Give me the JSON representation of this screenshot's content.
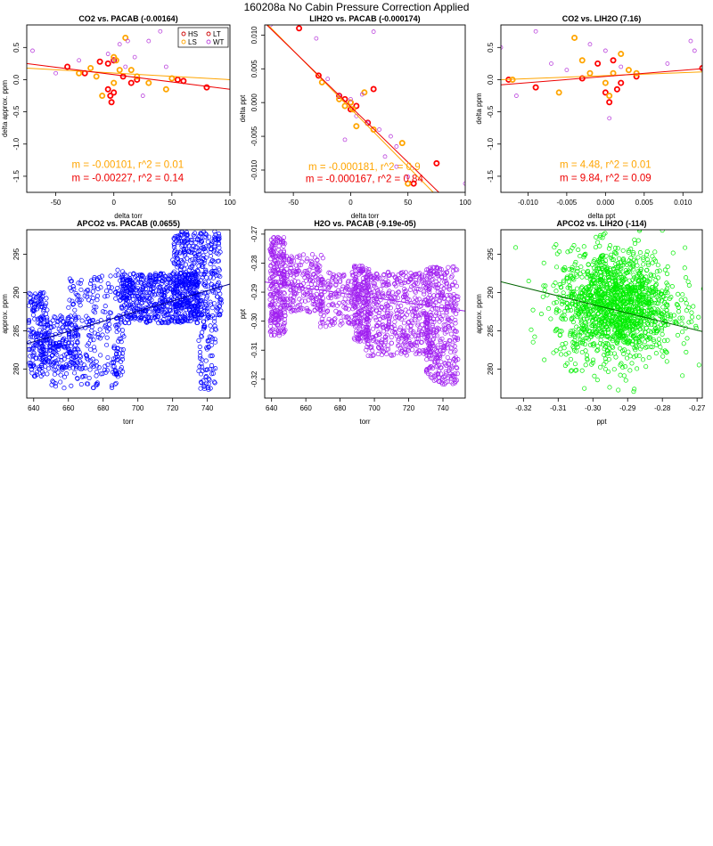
{
  "title": "160208a   No Cabin Pressure Correction Applied",
  "chart_data": [
    {
      "id": "p1",
      "type": "scatter",
      "title": "CO2 vs. PACAB (-0.00164)",
      "xlabel": "delta torr",
      "ylabel": "delta approx. ppm",
      "xlim": [
        -75,
        100
      ],
      "ylim": [
        -1.75,
        0.85
      ],
      "xticks": [
        -50,
        0,
        50,
        100
      ],
      "yticks": [
        -1.5,
        -1.0,
        -0.5,
        0.0,
        0.5
      ],
      "ytick_labels": [
        "-1.5",
        "-1.0",
        "-0.5",
        "0.0",
        "0.5"
      ],
      "legend": {
        "placement": "top-right",
        "entries": [
          {
            "label": "HS",
            "color": "#cc0000"
          },
          {
            "label": "LT",
            "color": "#cc0000"
          },
          {
            "label": "LS",
            "color": "#ffa500"
          },
          {
            "label": "WT",
            "color": "#bb44dd"
          }
        ]
      },
      "series": [
        {
          "name": "HS",
          "color": "#ff0000",
          "thick": true,
          "x": [
            -40,
            -25,
            -12,
            -5,
            -5,
            -3,
            -2,
            0,
            0,
            8,
            15,
            20,
            60,
            80,
            55,
            0
          ],
          "y": [
            0.2,
            0.1,
            0.28,
            0.25,
            -0.15,
            -0.25,
            -0.35,
            0.3,
            -0.2,
            0.05,
            -0.05,
            0.0,
            -0.02,
            -0.12,
            0.0,
            0.3
          ]
        },
        {
          "name": "LS",
          "color": "#ffa500",
          "thick": true,
          "x": [
            -30,
            -20,
            -15,
            -10,
            0,
            0,
            2,
            5,
            10,
            15,
            20,
            30,
            45,
            50
          ],
          "y": [
            0.1,
            0.18,
            0.05,
            -0.25,
            0.35,
            -0.05,
            0.3,
            0.15,
            0.65,
            0.15,
            0.05,
            -0.05,
            -0.15,
            0.02
          ]
        },
        {
          "name": "WT",
          "color": "#bb44dd",
          "thick": false,
          "x": [
            -70,
            -30,
            -5,
            0,
            5,
            10,
            12,
            18,
            25,
            30,
            40,
            45,
            -50
          ],
          "y": [
            0.45,
            0.3,
            0.4,
            0.3,
            0.55,
            0.2,
            0.6,
            0.35,
            -0.25,
            0.6,
            0.75,
            0.2,
            0.1
          ]
        }
      ],
      "fits": [
        {
          "color": "#ffa500",
          "x": [
            -75,
            100
          ],
          "y": [
            0.18,
            0.0
          ]
        },
        {
          "color": "#ee0000",
          "x": [
            -75,
            100
          ],
          "y": [
            0.25,
            -0.15
          ]
        }
      ],
      "annotations": [
        {
          "text": "m = -0.00101, r^2 = 0.01",
          "color": "#ffa500",
          "x": 12,
          "y": -1.37
        },
        {
          "text": "m = -0.00227, r^2 = 0.14",
          "color": "#ee0000",
          "x": 12,
          "y": -1.58
        }
      ]
    },
    {
      "id": "p2",
      "type": "scatter",
      "title": "LIH2O vs. PACAB (-0.000174)",
      "xlabel": "delta torr",
      "ylabel": "delta ppt",
      "xlim": [
        -75,
        100
      ],
      "ylim": [
        -0.0133,
        0.0115
      ],
      "xticks": [
        -50,
        0,
        50,
        100
      ],
      "yticks": [
        -0.01,
        -0.005,
        0.0,
        0.005,
        0.01
      ],
      "ytick_labels": [
        "-0.010",
        "-0.005",
        "0.000",
        "0.005",
        "0.010"
      ],
      "series": [
        {
          "name": "HS",
          "color": "#ff0000",
          "thick": true,
          "x": [
            -45,
            -28,
            -10,
            -5,
            0,
            0,
            15,
            20,
            75,
            55,
            5
          ],
          "y": [
            0.011,
            0.004,
            0.001,
            0.0005,
            0.0,
            -0.001,
            -0.003,
            0.002,
            -0.009,
            -0.012,
            -0.0005
          ]
        },
        {
          "name": "LS",
          "color": "#ffa500",
          "thick": true,
          "x": [
            -25,
            -10,
            -5,
            0,
            2,
            5,
            12,
            20,
            45,
            50
          ],
          "y": [
            0.003,
            0.0005,
            -0.0005,
            0.0,
            -0.001,
            -0.0035,
            0.0015,
            -0.004,
            -0.006,
            -0.012
          ]
        },
        {
          "name": "WT",
          "color": "#bb44dd",
          "thick": false,
          "x": [
            -70,
            -30,
            -20,
            -10,
            0,
            5,
            10,
            15,
            20,
            25,
            30,
            40,
            50,
            100,
            40,
            35,
            -5
          ],
          "y": [
            0.0115,
            0.0095,
            0.0035,
            0.001,
            0.0005,
            -0.002,
            0.0012,
            -0.003,
            0.0105,
            -0.004,
            -0.008,
            -0.0095,
            -0.011,
            -0.012,
            -0.0065,
            -0.005,
            -0.0055
          ]
        }
      ],
      "fits": [
        {
          "color": "#ffa500",
          "x": [
            -75,
            75
          ],
          "y": [
            0.012,
            -0.0138
          ]
        },
        {
          "color": "#ee0000",
          "x": [
            -75,
            80
          ],
          "y": [
            0.0118,
            -0.0138
          ]
        }
      ],
      "annotations": [
        {
          "text": "m = -0.000181, r^2 = 0.9",
          "color": "#ffa500",
          "x": 12,
          "y": -0.01
        },
        {
          "text": "m = -0.000167, r^2 = 0.84",
          "color": "#ee0000",
          "x": 12,
          "y": -0.0118
        }
      ]
    },
    {
      "id": "p3",
      "type": "scatter",
      "title": "CO2 vs. LIH2O (7.16)",
      "xlabel": "delta ppt",
      "ylabel": "delta ppm",
      "xlim": [
        -0.0135,
        0.0125
      ],
      "ylim": [
        -1.75,
        0.85
      ],
      "xticks": [
        -0.01,
        -0.005,
        0.0,
        0.005,
        0.01
      ],
      "xtick_labels": [
        "-0.010",
        "-0.005",
        "0.000",
        "0.005",
        "0.010"
      ],
      "yticks": [
        -1.5,
        -1.0,
        -0.5,
        0.0,
        0.5
      ],
      "ytick_labels": [
        "-1.5",
        "-1.0",
        "-0.5",
        "0.0",
        "0.5"
      ],
      "series": [
        {
          "name": "HS",
          "color": "#ff0000",
          "thick": true,
          "x": [
            -0.0125,
            -0.009,
            -0.003,
            -0.001,
            0.0,
            0.0005,
            0.001,
            0.0015,
            0.002,
            0.004,
            0.0125
          ],
          "y": [
            0.0,
            -0.12,
            0.02,
            0.25,
            -0.2,
            -0.35,
            0.3,
            -0.15,
            -0.05,
            0.05,
            0.18
          ]
        },
        {
          "name": "LS",
          "color": "#ffa500",
          "thick": true,
          "x": [
            -0.012,
            -0.006,
            -0.004,
            -0.003,
            -0.002,
            0.0,
            0.0005,
            0.001,
            0.002,
            0.003,
            0.004
          ],
          "y": [
            0.0,
            -0.2,
            0.65,
            0.3,
            0.1,
            -0.05,
            -0.25,
            0.1,
            0.4,
            0.15,
            0.1
          ]
        },
        {
          "name": "WT",
          "color": "#bb44dd",
          "thick": false,
          "x": [
            -0.0135,
            -0.0115,
            -0.009,
            -0.007,
            -0.005,
            -0.002,
            0.0,
            0.002,
            0.008,
            0.011,
            0.0115,
            0.0005
          ],
          "y": [
            0.5,
            -0.25,
            0.75,
            0.25,
            0.15,
            0.55,
            0.45,
            0.2,
            0.25,
            0.6,
            0.45,
            -0.6
          ]
        }
      ],
      "fits": [
        {
          "color": "#ffa500",
          "x": [
            -0.0135,
            0.0125
          ],
          "y": [
            0.0,
            0.12
          ]
        },
        {
          "color": "#ee0000",
          "x": [
            -0.0135,
            0.0125
          ],
          "y": [
            -0.08,
            0.17
          ]
        }
      ],
      "annotations": [
        {
          "text": "m = 4.48, r^2 = 0.01",
          "color": "#ffa500",
          "x": 0.0,
          "y": -1.37
        },
        {
          "text": "m = 9.84, r^2 = 0.09",
          "color": "#ee0000",
          "x": 0.0,
          "y": -1.58
        }
      ]
    },
    {
      "id": "p4",
      "type": "scatter",
      "title": "APCO2 vs. PACAB (0.0655)",
      "xlabel": "torr",
      "ylabel": "approx. ppm",
      "xlim": [
        636,
        753
      ],
      "ylim": [
        276.2,
        298.2
      ],
      "xticks": [
        640,
        660,
        680,
        700,
        720,
        740
      ],
      "yticks": [
        280,
        285,
        290,
        295
      ],
      "color": "#0000ff",
      "trend": {
        "x": [
          636,
          753
        ],
        "y": [
          283.3,
          291.1
        ]
      },
      "density_regions": [
        {
          "x": [
            637,
            648
          ],
          "y": [
            279,
            290
          ],
          "n": 180
        },
        {
          "x": [
            645,
            666
          ],
          "y": [
            280,
            287
          ],
          "n": 160
        },
        {
          "x": [
            660,
            685
          ],
          "y": [
            284,
            292.5
          ],
          "n": 120
        },
        {
          "x": [
            648,
            690
          ],
          "y": [
            277.5,
            284
          ],
          "n": 140
        },
        {
          "x": [
            687,
            692
          ],
          "y": [
            279,
            293
          ],
          "n": 60
        },
        {
          "x": [
            690,
            735
          ],
          "y": [
            286,
            292.5
          ],
          "n": 600
        },
        {
          "x": [
            720,
            748
          ],
          "y": [
            287,
            298
          ],
          "n": 380
        },
        {
          "x": [
            735,
            745
          ],
          "y": [
            277,
            287
          ],
          "n": 80
        }
      ]
    },
    {
      "id": "p5",
      "type": "scatter",
      "title": "H2O vs. PACAB (-9.19e-05)",
      "xlabel": "torr",
      "ylabel": "ppt",
      "xlim": [
        636,
        753
      ],
      "ylim": [
        -0.3265,
        -0.2685
      ],
      "xticks": [
        640,
        660,
        680,
        700,
        720,
        740
      ],
      "yticks": [
        -0.32,
        -0.31,
        -0.3,
        -0.29,
        -0.28,
        -0.27
      ],
      "ytick_labels": [
        "-0.32",
        "-0.31",
        "-0.30",
        "-0.29",
        "-0.28",
        "-0.27"
      ],
      "color": "#a020f0",
      "trend": {
        "x": [
          636,
          753
        ],
        "y": [
          -0.2865,
          -0.2965
        ]
      },
      "density_regions": [
        {
          "x": [
            639,
            648
          ],
          "y": [
            -0.305,
            -0.271
          ],
          "n": 260
        },
        {
          "x": [
            647,
            670
          ],
          "y": [
            -0.297,
            -0.277
          ],
          "n": 220
        },
        {
          "x": [
            668,
            690
          ],
          "y": [
            -0.302,
            -0.283
          ],
          "n": 150
        },
        {
          "x": [
            688,
            697
          ],
          "y": [
            -0.307,
            -0.281
          ],
          "n": 200
        },
        {
          "x": [
            695,
            733
          ],
          "y": [
            -0.312,
            -0.283
          ],
          "n": 500
        },
        {
          "x": [
            730,
            749
          ],
          "y": [
            -0.322,
            -0.281
          ],
          "n": 360
        }
      ]
    },
    {
      "id": "p6",
      "type": "scatter",
      "title": "APCO2 vs. LIH2O (-114)",
      "xlabel": "ppt",
      "ylabel": "approx. ppm",
      "xlim": [
        -0.3265,
        -0.2685
      ],
      "ylim": [
        276.2,
        298.2
      ],
      "xticks": [
        -0.32,
        -0.31,
        -0.3,
        -0.29,
        -0.28,
        -0.27
      ],
      "xtick_labels": [
        "-0.32",
        "-0.31",
        "-0.30",
        "-0.29",
        "-0.28",
        "-0.27"
      ],
      "yticks": [
        280,
        285,
        290,
        295
      ],
      "color": "#00ee00",
      "trend": {
        "x": [
          -0.3265,
          -0.2685
        ],
        "y": [
          291.4,
          284.9
        ]
      },
      "blob": {
        "cx": -0.2935,
        "cy": 288.3,
        "sx": 0.0085,
        "sy": 3.6,
        "n": 1500
      }
    }
  ]
}
